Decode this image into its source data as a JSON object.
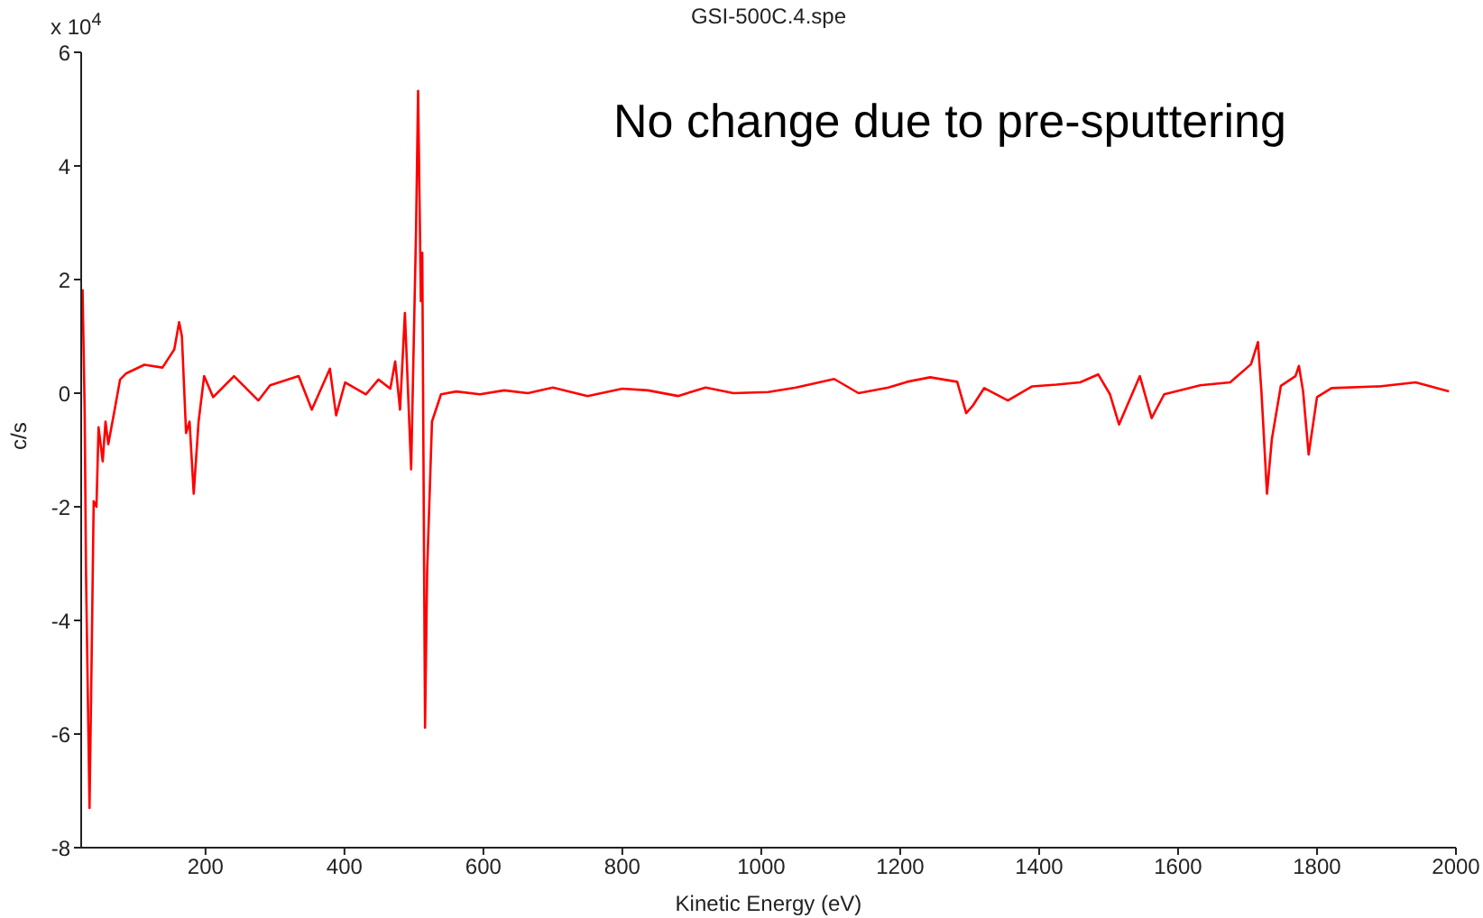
{
  "chart_data": {
    "type": "line",
    "title": "GSI-500C.4.spe",
    "xlabel": "Kinetic Energy (eV)",
    "ylabel": "c/s",
    "annotations": [
      "x 10$^{4}$",
      "No change due to pre-sputtering"
    ],
    "xlim": [
      21,
      2000
    ],
    "xticks": [
      200,
      400,
      600,
      800,
      1000,
      1200,
      1400,
      1600,
      1800,
      2000
    ],
    "ylim": [
      -8,
      6
    ],
    "yticks": [
      -8,
      -6,
      -4,
      -2,
      0,
      2,
      4,
      6
    ],
    "grid": false,
    "legend": false,
    "marker": "none",
    "line_style": "solid",
    "series": [
      {
        "color": "#ff0000",
        "x": [
          23,
          26,
          28,
          33,
          36,
          39,
          43,
          46,
          52,
          56,
          60,
          69,
          77,
          86,
          112,
          138,
          155,
          162,
          166,
          172,
          177,
          183,
          190,
          198,
          211,
          241,
          276,
          293,
          334,
          353,
          379,
          388,
          401,
          431,
          449,
          466,
          473,
          480,
          487,
          496,
          503,
          506,
          510,
          512,
          516,
          519,
          526,
          539,
          561,
          595,
          630,
          664,
          700,
          750,
          800,
          837,
          880,
          920,
          960,
          1010,
          1050,
          1105,
          1140,
          1183,
          1210,
          1243,
          1282,
          1295,
          1304,
          1321,
          1355,
          1390,
          1425,
          1459,
          1485,
          1502,
          1515,
          1545,
          1562,
          1580,
          1632,
          1675,
          1705,
          1715,
          1720,
          1728,
          1735,
          1748,
          1769,
          1774,
          1780,
          1788,
          1800,
          1821,
          1890,
          1942,
          1990
        ],
        "values": [
          1.83,
          -0.29,
          -3.2,
          -7.3,
          -4.7,
          -1.9,
          -2.0,
          -0.6,
          -1.2,
          -0.5,
          -0.9,
          -0.3,
          0.24,
          0.35,
          0.5,
          0.45,
          0.77,
          1.25,
          1.0,
          -0.7,
          -0.5,
          -1.77,
          -0.5,
          0.3,
          -0.07,
          0.3,
          -0.13,
          0.14,
          0.3,
          -0.29,
          0.43,
          -0.39,
          0.19,
          -0.02,
          0.24,
          0.08,
          0.56,
          -0.29,
          1.41,
          -1.34,
          2.84,
          5.32,
          1.62,
          2.47,
          -5.89,
          -3.14,
          -0.5,
          -0.02,
          0.03,
          -0.02,
          0.05,
          0.0,
          0.1,
          -0.05,
          0.08,
          0.05,
          -0.05,
          0.1,
          0.0,
          0.02,
          0.1,
          0.25,
          0.0,
          0.1,
          0.2,
          0.28,
          0.2,
          -0.35,
          -0.23,
          0.09,
          -0.13,
          0.12,
          0.15,
          0.19,
          0.33,
          -0.02,
          -0.55,
          0.3,
          -0.44,
          -0.02,
          0.14,
          0.19,
          0.51,
          0.9,
          0.03,
          -1.77,
          -0.81,
          0.13,
          0.3,
          0.48,
          0.03,
          -1.08,
          -0.07,
          0.09,
          0.12,
          0.19,
          0.03
        ]
      }
    ]
  }
}
